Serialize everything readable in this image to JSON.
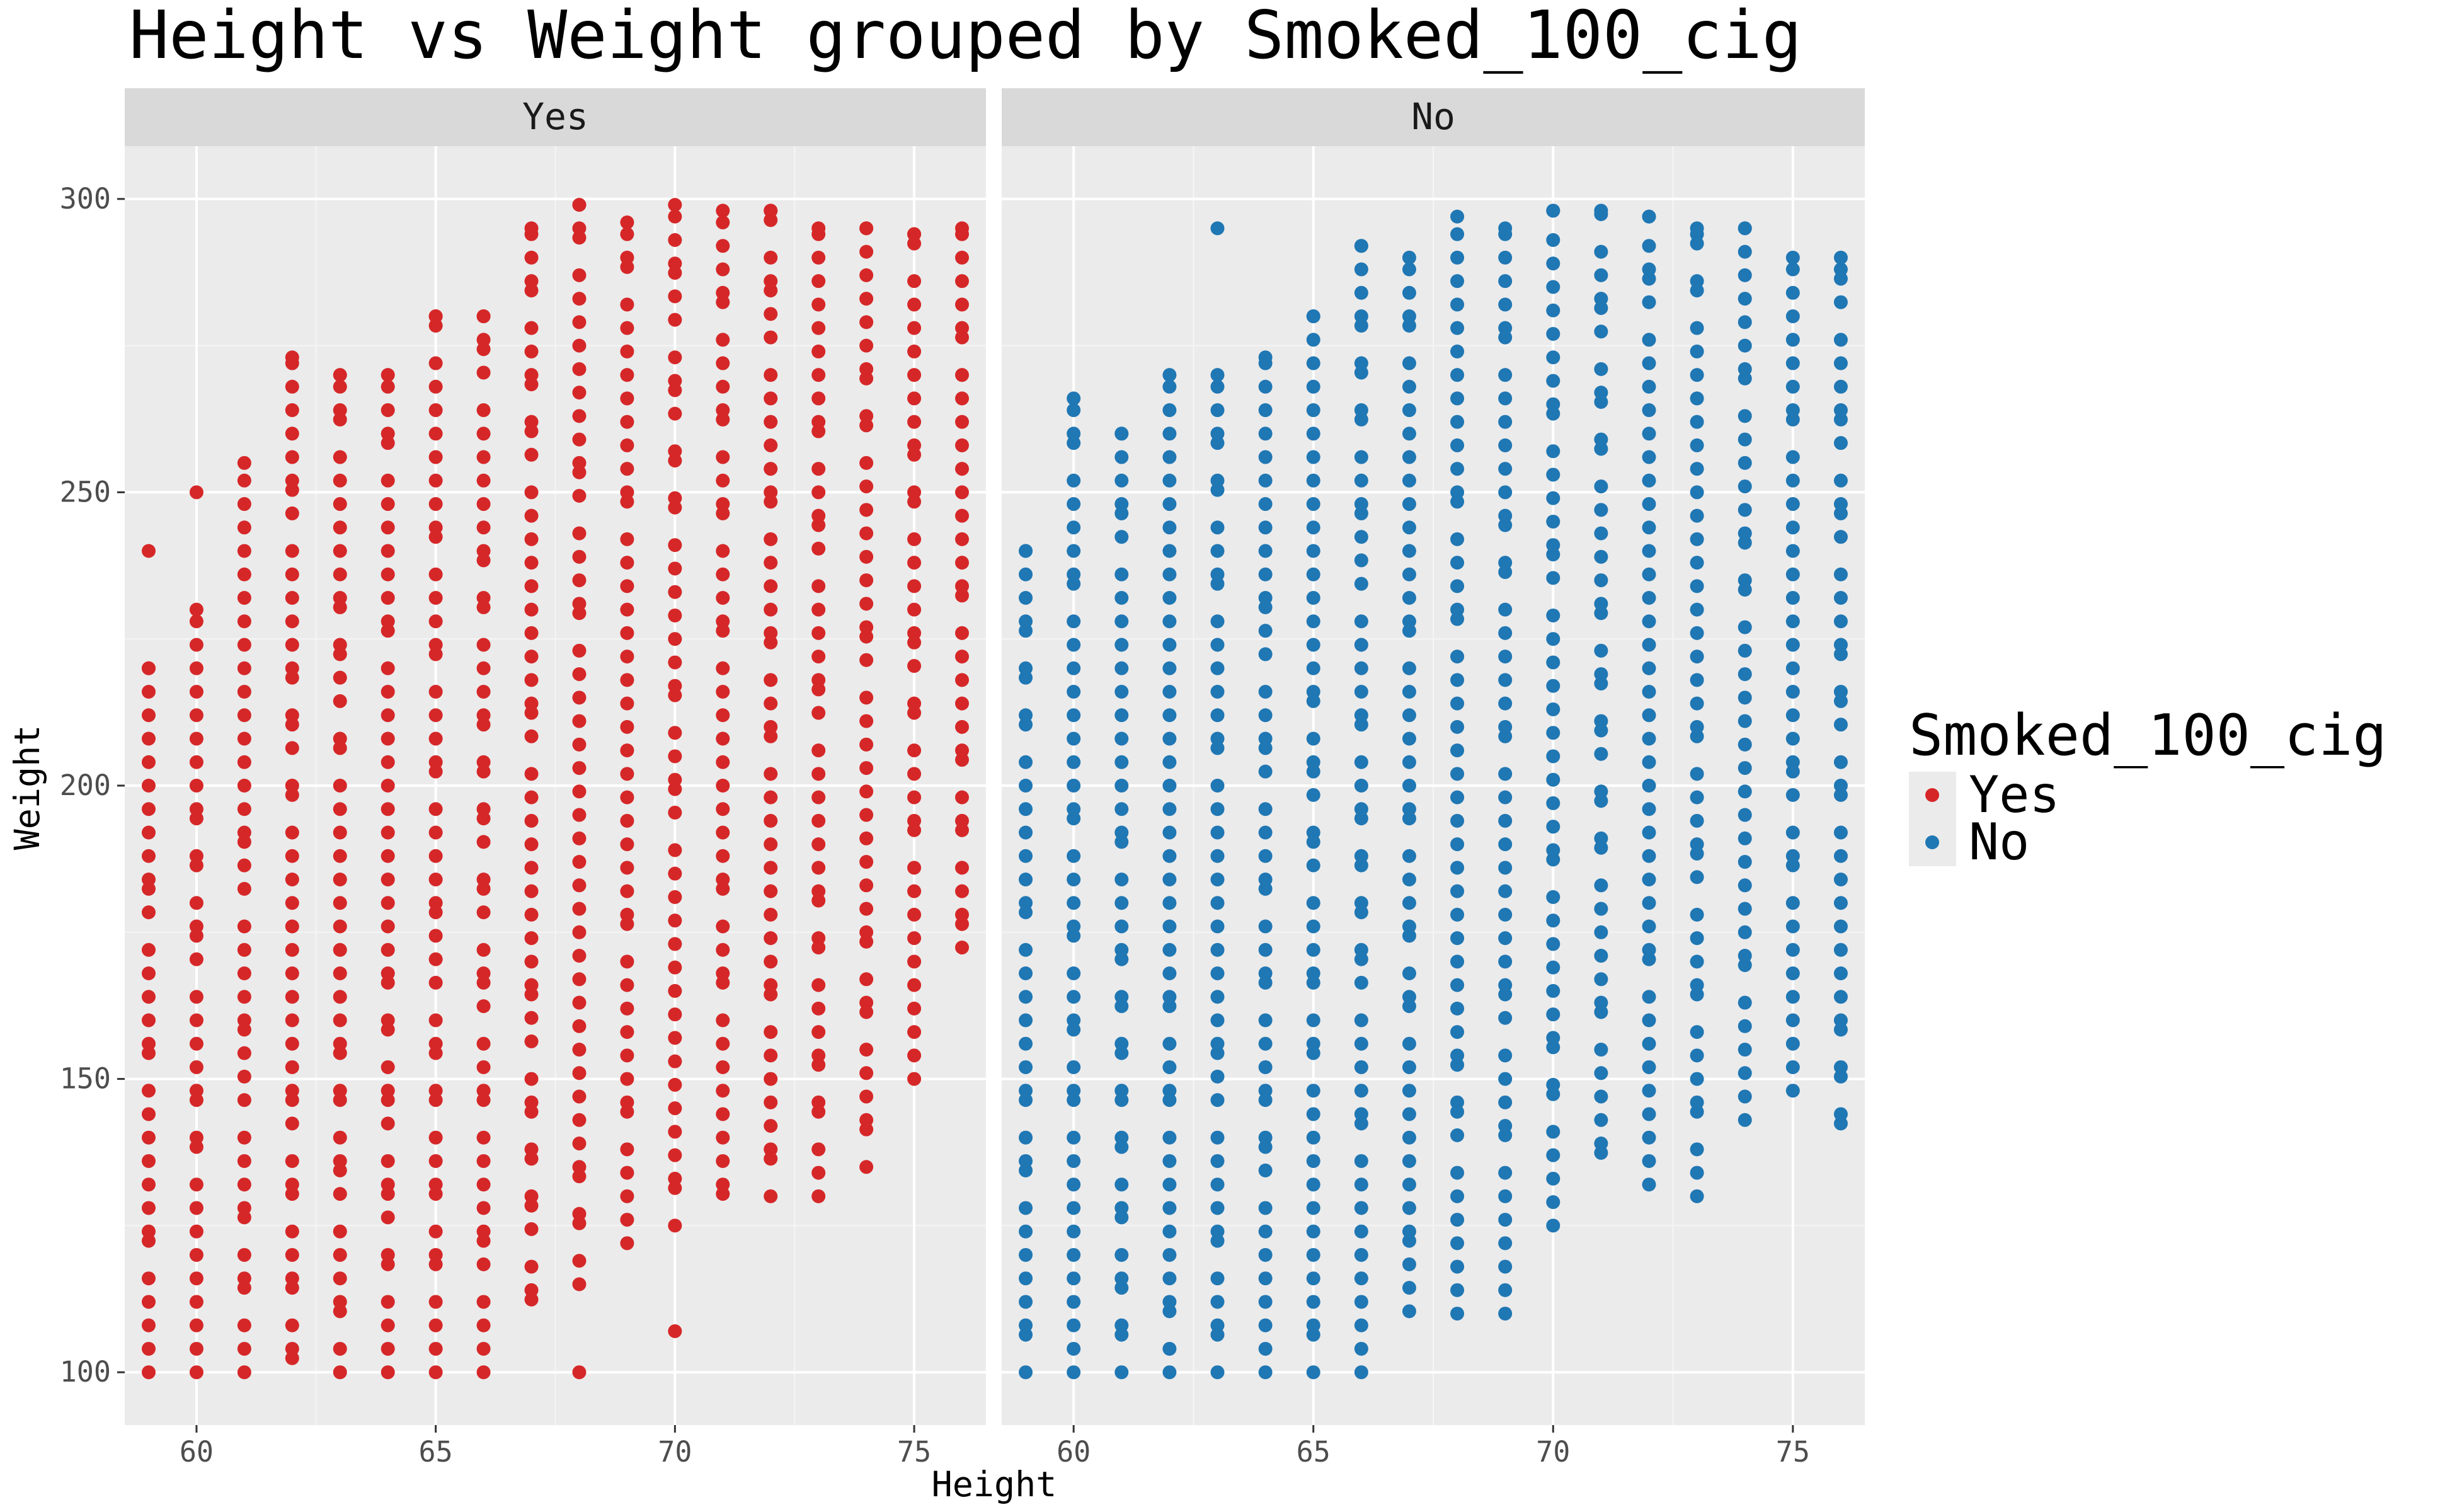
{
  "chart_data": {
    "type": "scatter",
    "title": "Height vs Weight grouped by Smoked_100_cig",
    "xlabel": "Height",
    "ylabel": "Weight",
    "xlim": [
      58.5,
      76.5
    ],
    "ylim": [
      91,
      309
    ],
    "x_ticks": [
      60,
      65,
      70,
      75
    ],
    "y_ticks": [
      100,
      150,
      200,
      250,
      300
    ],
    "grid": true,
    "legend": {
      "title": "Smoked_100_cig",
      "placement": "right",
      "entries": [
        {
          "label": "Yes",
          "color": "#d62728"
        },
        {
          "label": "No",
          "color": "#1f77b4"
        }
      ]
    },
    "facets": [
      {
        "label": "Yes",
        "color": "#d62728",
        "columns": [
          {
            "x": 59,
            "min": 100,
            "max": 220,
            "outliers": [
              240
            ]
          },
          {
            "x": 60,
            "min": 100,
            "max": 230,
            "outliers": [
              250
            ]
          },
          {
            "x": 61,
            "min": 100,
            "max": 255,
            "outliers": []
          },
          {
            "x": 62,
            "min": 100,
            "max": 273,
            "outliers": []
          },
          {
            "x": 63,
            "min": 100,
            "max": 270,
            "outliers": []
          },
          {
            "x": 64,
            "min": 100,
            "max": 270,
            "outliers": []
          },
          {
            "x": 65,
            "min": 100,
            "max": 280,
            "outliers": []
          },
          {
            "x": 66,
            "min": 100,
            "max": 280,
            "outliers": []
          },
          {
            "x": 67,
            "min": 110,
            "max": 295,
            "outliers": []
          },
          {
            "x": 68,
            "min": 115,
            "max": 299,
            "outliers": [
              100
            ]
          },
          {
            "x": 69,
            "min": 122,
            "max": 296,
            "outliers": []
          },
          {
            "x": 70,
            "min": 125,
            "max": 299,
            "outliers": [
              107
            ]
          },
          {
            "x": 71,
            "min": 128,
            "max": 298,
            "outliers": []
          },
          {
            "x": 72,
            "min": 130,
            "max": 298,
            "outliers": []
          },
          {
            "x": 73,
            "min": 130,
            "max": 295,
            "outliers": []
          },
          {
            "x": 74,
            "min": 135,
            "max": 295,
            "outliers": []
          },
          {
            "x": 75,
            "min": 150,
            "max": 294,
            "outliers": []
          },
          {
            "x": 76,
            "min": 170,
            "max": 295,
            "outliers": []
          }
        ]
      },
      {
        "label": "No",
        "color": "#1f77b4",
        "columns": [
          {
            "x": 59,
            "min": 100,
            "max": 240,
            "outliers": []
          },
          {
            "x": 60,
            "min": 100,
            "max": 266,
            "outliers": []
          },
          {
            "x": 61,
            "min": 100,
            "max": 260,
            "outliers": []
          },
          {
            "x": 62,
            "min": 100,
            "max": 270,
            "outliers": []
          },
          {
            "x": 63,
            "min": 100,
            "max": 270,
            "outliers": [
              295
            ]
          },
          {
            "x": 64,
            "min": 100,
            "max": 273,
            "outliers": []
          },
          {
            "x": 65,
            "min": 100,
            "max": 280,
            "outliers": []
          },
          {
            "x": 66,
            "min": 100,
            "max": 292,
            "outliers": []
          },
          {
            "x": 67,
            "min": 108,
            "max": 290,
            "outliers": []
          },
          {
            "x": 68,
            "min": 110,
            "max": 297,
            "outliers": []
          },
          {
            "x": 69,
            "min": 110,
            "max": 295,
            "outliers": []
          },
          {
            "x": 70,
            "min": 125,
            "max": 298,
            "outliers": []
          },
          {
            "x": 71,
            "min": 135,
            "max": 298,
            "outliers": []
          },
          {
            "x": 72,
            "min": 132,
            "max": 297,
            "outliers": []
          },
          {
            "x": 73,
            "min": 130,
            "max": 295,
            "outliers": []
          },
          {
            "x": 74,
            "min": 143,
            "max": 295,
            "outliers": []
          },
          {
            "x": 75,
            "min": 148,
            "max": 290,
            "outliers": []
          },
          {
            "x": 76,
            "min": 140,
            "max": 290,
            "outliers": []
          }
        ]
      }
    ]
  }
}
